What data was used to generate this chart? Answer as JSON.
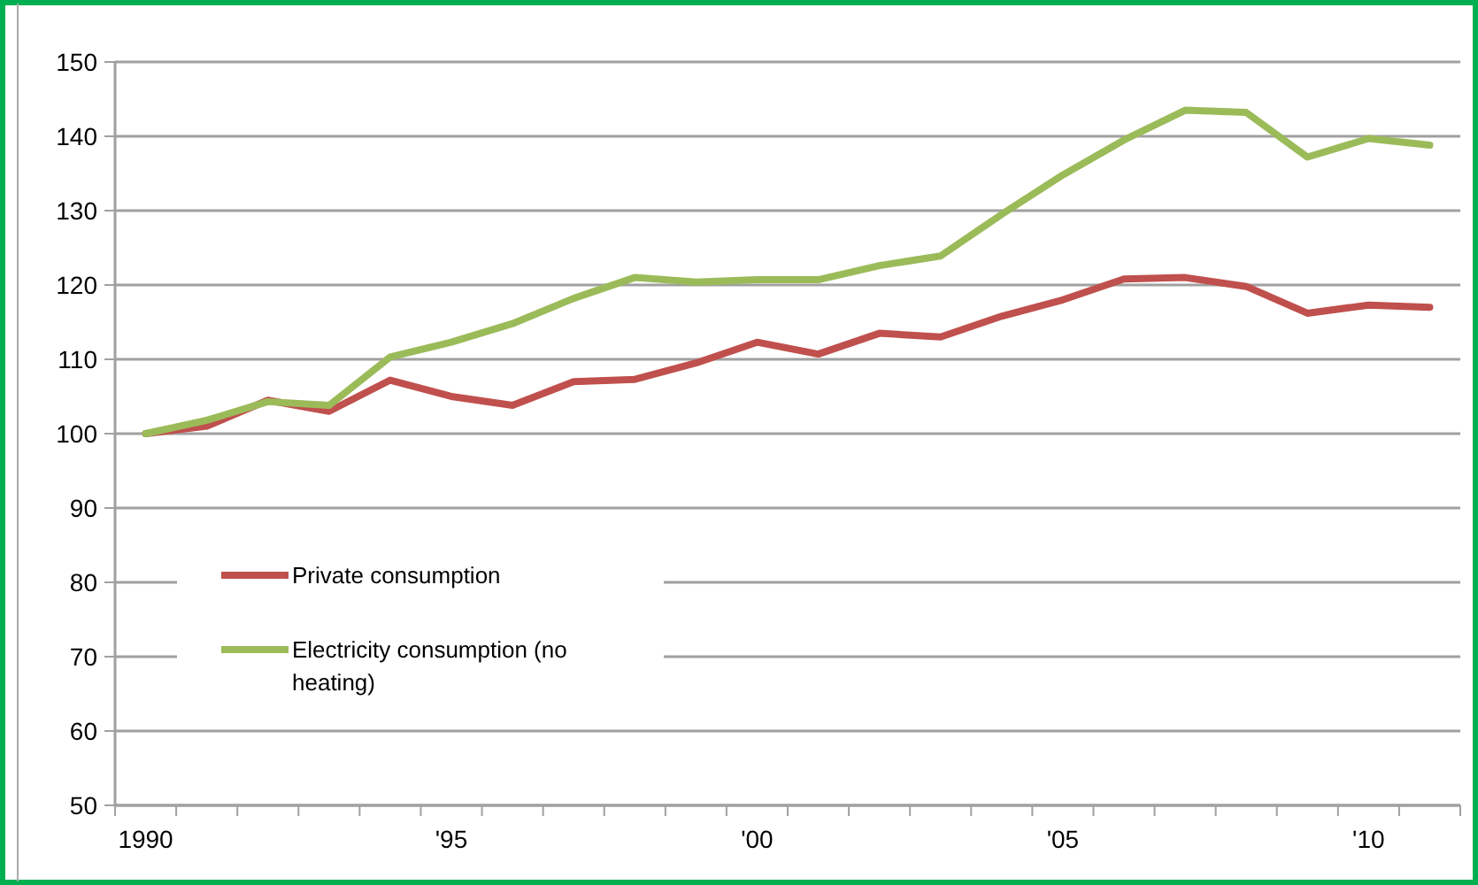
{
  "chart_data": {
    "type": "line",
    "categories": [
      "1990",
      null,
      null,
      null,
      null,
      "'95",
      null,
      null,
      null,
      null,
      "'00",
      null,
      null,
      null,
      null,
      "'05",
      null,
      null,
      null,
      null,
      "'10",
      null
    ],
    "series": [
      {
        "name": "Private consumption",
        "color": "#c0504d",
        "values": [
          100,
          101,
          104.5,
          103,
          107.2,
          105,
          103.8,
          107,
          107.3,
          109.5,
          112.3,
          110.7,
          113.5,
          113,
          115.8,
          118,
          120.8,
          121,
          119.8,
          116.2,
          117.3,
          117
        ]
      },
      {
        "name": "Electricity consumption (no heating)",
        "color": "#9bbb59",
        "values": [
          100,
          101.8,
          104.3,
          103.8,
          110.3,
          112.3,
          114.8,
          118.2,
          121,
          120.4,
          120.7,
          120.7,
          122.6,
          123.9,
          129.5,
          134.8,
          139.5,
          143.5,
          143.2,
          137.2,
          139.7,
          138.8
        ]
      }
    ],
    "ylim": [
      50,
      150
    ],
    "yticks": [
      50,
      60,
      70,
      80,
      90,
      100,
      110,
      120,
      130,
      140,
      150
    ],
    "grid": "y",
    "legend": "left",
    "marker": "none",
    "line_style": "solid"
  }
}
